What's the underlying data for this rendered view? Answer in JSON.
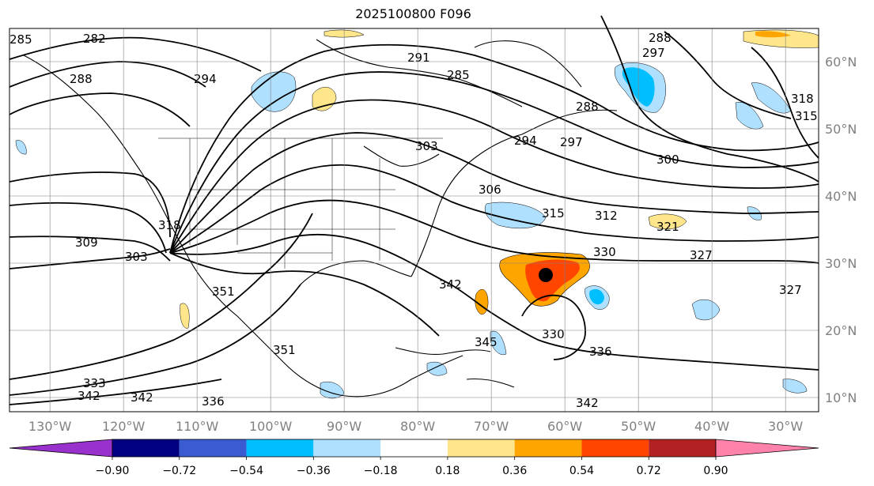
{
  "title": "2025100800 F096",
  "lon_labels": [
    "130°W",
    "120°W",
    "110°W",
    "100°W",
    "90°W",
    "80°W",
    "70°W",
    "60°W",
    "50°W",
    "40°W",
    "30°W"
  ],
  "lat_labels": [
    "60°N",
    "50°N",
    "40°N",
    "30°N",
    "20°N",
    "10°N"
  ],
  "colorbar": {
    "colors": [
      "#9932cc",
      "#000080",
      "#3a5bd1",
      "#00bfff",
      "#b0e0ff",
      "#ffffff",
      "#ffe68a",
      "#ffa500",
      "#ff4500",
      "#b22222",
      "#ff82ab"
    ],
    "tick_labels": [
      "−0.90",
      "−0.72",
      "−0.54",
      "−0.36",
      "−0.18",
      "0.18",
      "0.36",
      "0.54",
      "0.72",
      "0.90"
    ]
  },
  "contour_labels": [
    "282",
    "288",
    "294",
    "291",
    "285",
    "288",
    "294",
    "297",
    "300",
    "306",
    "315",
    "312",
    "321",
    "327",
    "330",
    "318",
    "315",
    "309",
    "303",
    "318",
    "327",
    "351",
    "351",
    "342",
    "345",
    "330",
    "336",
    "333",
    "342",
    "342",
    "336",
    "342",
    "285",
    "288",
    "297",
    "303"
  ],
  "storm_marker": {
    "lon": -60,
    "lat": 28
  },
  "colors": {
    "contour": "#000000",
    "grid": "#808080",
    "coast": "#000000"
  }
}
